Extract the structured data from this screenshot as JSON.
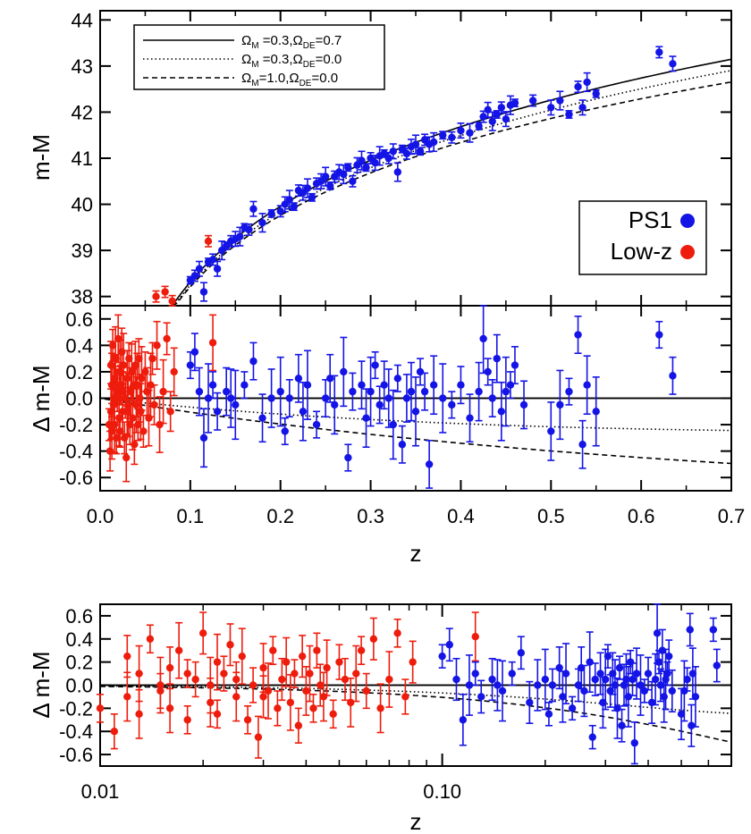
{
  "colors": {
    "ps1": "#1414e6",
    "lowz": "#ee1c0c",
    "axis": "#000000"
  },
  "chart_data": [
    {
      "type": "scatter",
      "panel": "top",
      "ylabel": "m-M",
      "xlim": [
        0,
        0.7
      ],
      "ylim": [
        37.8,
        44.2
      ],
      "yticks": [
        "38",
        "39",
        "40",
        "41",
        "42",
        "43",
        "44"
      ],
      "legend_lines": [
        {
          "omega_m": "0.3",
          "omega_de": "0.7",
          "style": "solid"
        },
        {
          "omega_m": "0.3",
          "omega_de": "0.0",
          "style": "dotted"
        },
        {
          "omega_m": "1.0",
          "omega_de": "0.0",
          "style": "dashed"
        }
      ],
      "legend_lines_placement": "top-left",
      "legend_points": [
        {
          "label": "PS1",
          "color": "#1414e6"
        },
        {
          "label": "Low-z",
          "color": "#ee1c0c"
        }
      ],
      "legend_points_placement": "right",
      "series_lowz": [
        [
          0.062,
          38.0
        ],
        [
          0.072,
          38.1
        ],
        [
          0.12,
          39.2
        ],
        [
          0.08,
          37.9
        ]
      ],
      "series_ps1": [
        [
          0.1,
          38.35
        ],
        [
          0.105,
          38.45
        ],
        [
          0.11,
          38.6
        ],
        [
          0.115,
          38.1
        ],
        [
          0.12,
          38.75
        ],
        [
          0.125,
          38.8
        ],
        [
          0.13,
          38.6
        ],
        [
          0.135,
          39.0
        ],
        [
          0.14,
          39.1
        ],
        [
          0.145,
          39.2
        ],
        [
          0.15,
          39.25
        ],
        [
          0.155,
          39.3
        ],
        [
          0.16,
          39.5
        ],
        [
          0.165,
          39.45
        ],
        [
          0.17,
          39.9
        ],
        [
          0.18,
          39.6
        ],
        [
          0.19,
          39.8
        ],
        [
          0.2,
          39.85
        ],
        [
          0.205,
          40.0
        ],
        [
          0.21,
          40.1
        ],
        [
          0.215,
          39.95
        ],
        [
          0.22,
          40.3
        ],
        [
          0.225,
          40.25
        ],
        [
          0.23,
          40.35
        ],
        [
          0.235,
          40.15
        ],
        [
          0.24,
          40.45
        ],
        [
          0.245,
          40.5
        ],
        [
          0.25,
          40.6
        ],
        [
          0.255,
          40.4
        ],
        [
          0.26,
          40.6
        ],
        [
          0.265,
          40.7
        ],
        [
          0.27,
          40.65
        ],
        [
          0.275,
          40.8
        ],
        [
          0.28,
          40.5
        ],
        [
          0.285,
          40.85
        ],
        [
          0.29,
          40.95
        ],
        [
          0.295,
          40.8
        ],
        [
          0.3,
          41.0
        ],
        [
          0.305,
          40.9
        ],
        [
          0.31,
          41.05
        ],
        [
          0.315,
          41.1
        ],
        [
          0.32,
          41.0
        ],
        [
          0.325,
          41.15
        ],
        [
          0.33,
          40.7
        ],
        [
          0.335,
          41.2
        ],
        [
          0.34,
          41.1
        ],
        [
          0.345,
          41.25
        ],
        [
          0.35,
          41.3
        ],
        [
          0.355,
          41.15
        ],
        [
          0.36,
          41.4
        ],
        [
          0.365,
          41.3
        ],
        [
          0.37,
          41.35
        ],
        [
          0.38,
          41.5
        ],
        [
          0.39,
          41.45
        ],
        [
          0.4,
          41.6
        ],
        [
          0.41,
          41.55
        ],
        [
          0.42,
          41.7
        ],
        [
          0.425,
          41.9
        ],
        [
          0.43,
          42.05
        ],
        [
          0.435,
          41.8
        ],
        [
          0.44,
          41.95
        ],
        [
          0.445,
          42.1
        ],
        [
          0.45,
          41.85
        ],
        [
          0.455,
          42.15
        ],
        [
          0.46,
          42.2
        ],
        [
          0.48,
          42.25
        ],
        [
          0.5,
          42.1
        ],
        [
          0.51,
          42.25
        ],
        [
          0.52,
          41.95
        ],
        [
          0.53,
          42.55
        ],
        [
          0.535,
          42.1
        ],
        [
          0.54,
          42.65
        ],
        [
          0.55,
          42.4
        ],
        [
          0.62,
          43.3
        ],
        [
          0.635,
          43.05
        ]
      ]
    },
    {
      "type": "scatter",
      "panel": "middle",
      "ylabel": "Δ m-M",
      "xlabel": "z",
      "xlim": [
        0,
        0.7
      ],
      "ylim": [
        -0.7,
        0.7
      ],
      "xticks": [
        "0.0",
        "0.1",
        "0.2",
        "0.3",
        "0.4",
        "0.5",
        "0.6",
        "0.7"
      ],
      "yticks": [
        "-0.6",
        "-0.4",
        "-0.2",
        "0.0",
        "0.2",
        "0.4",
        "0.6"
      ]
    },
    {
      "type": "scatter",
      "panel": "bottom",
      "ylabel": "Δ m-M",
      "xlabel": "z",
      "xscale": "log",
      "xlim": [
        0.01,
        0.7
      ],
      "ylim": [
        -0.7,
        0.7
      ],
      "xticks": [
        "0.01",
        "0.10"
      ],
      "yticks": [
        "-0.6",
        "-0.4",
        "-0.2",
        "0.0",
        "0.2",
        "0.4",
        "0.6"
      ]
    }
  ],
  "residuals_lowz": [
    [
      0.01,
      -0.2
    ],
    [
      0.011,
      -0.4
    ],
    [
      0.012,
      0.25
    ],
    [
      0.012,
      -0.1
    ],
    [
      0.013,
      0.1
    ],
    [
      0.014,
      0.4
    ],
    [
      0.015,
      -0.05
    ],
    [
      0.016,
      0.15
    ],
    [
      0.016,
      -0.2
    ],
    [
      0.017,
      0.3
    ],
    [
      0.018,
      -0.3
    ],
    [
      0.019,
      0.05
    ],
    [
      0.02,
      0.45
    ],
    [
      0.021,
      -0.15
    ],
    [
      0.022,
      0.2
    ],
    [
      0.022,
      -0.25
    ],
    [
      0.023,
      0.1
    ],
    [
      0.024,
      0.35
    ],
    [
      0.025,
      -0.1
    ],
    [
      0.026,
      0.25
    ],
    [
      0.027,
      -0.3
    ],
    [
      0.028,
      0.0
    ],
    [
      0.029,
      -0.45
    ],
    [
      0.03,
      0.15
    ],
    [
      0.031,
      -0.05
    ],
    [
      0.032,
      0.3
    ],
    [
      0.033,
      -0.2
    ],
    [
      0.034,
      0.05
    ],
    [
      0.035,
      0.2
    ],
    [
      0.036,
      -0.15
    ],
    [
      0.037,
      0.1
    ],
    [
      0.038,
      -0.35
    ],
    [
      0.039,
      0.25
    ],
    [
      0.04,
      -0.05
    ],
    [
      0.041,
      0.1
    ],
    [
      0.042,
      -0.2
    ],
    [
      0.043,
      0.3
    ],
    [
      0.044,
      0.0
    ],
    [
      0.045,
      -0.1
    ],
    [
      0.046,
      0.15
    ],
    [
      0.048,
      -0.25
    ],
    [
      0.05,
      0.2
    ],
    [
      0.052,
      0.05
    ],
    [
      0.054,
      -0.15
    ],
    [
      0.056,
      0.1
    ],
    [
      0.058,
      0.3
    ],
    [
      0.06,
      -0.05
    ],
    [
      0.063,
      0.4
    ],
    [
      0.066,
      -0.2
    ],
    [
      0.07,
      0.05
    ],
    [
      0.074,
      0.45
    ],
    [
      0.078,
      -0.1
    ],
    [
      0.082,
      0.2
    ],
    [
      0.125,
      0.42
    ],
    [
      0.015,
      0.0
    ],
    [
      0.018,
      0.1
    ],
    [
      0.025,
      0.05
    ],
    [
      0.03,
      -0.1
    ],
    [
      0.013,
      -0.25
    ],
    [
      0.021,
      0.0
    ]
  ],
  "residuals_ps1": [
    [
      0.1,
      0.25
    ],
    [
      0.105,
      0.35
    ],
    [
      0.11,
      0.05
    ],
    [
      0.115,
      -0.3
    ],
    [
      0.12,
      0.0
    ],
    [
      0.125,
      0.1
    ],
    [
      0.13,
      -0.1
    ],
    [
      0.14,
      0.05
    ],
    [
      0.145,
      0.0
    ],
    [
      0.15,
      -0.05
    ],
    [
      0.16,
      0.1
    ],
    [
      0.17,
      0.28
    ],
    [
      0.18,
      -0.15
    ],
    [
      0.19,
      0.0
    ],
    [
      0.2,
      0.05
    ],
    [
      0.205,
      -0.25
    ],
    [
      0.21,
      0.0
    ],
    [
      0.22,
      0.15
    ],
    [
      0.225,
      -0.1
    ],
    [
      0.23,
      0.1
    ],
    [
      0.24,
      -0.2
    ],
    [
      0.25,
      0.0
    ],
    [
      0.255,
      0.15
    ],
    [
      0.26,
      -0.05
    ],
    [
      0.27,
      0.2
    ],
    [
      0.275,
      -0.45
    ],
    [
      0.28,
      0.05
    ],
    [
      0.29,
      0.1
    ],
    [
      0.295,
      -0.15
    ],
    [
      0.3,
      0.05
    ],
    [
      0.305,
      0.25
    ],
    [
      0.31,
      -0.05
    ],
    [
      0.315,
      0.1
    ],
    [
      0.32,
      0.0
    ],
    [
      0.325,
      -0.2
    ],
    [
      0.33,
      0.15
    ],
    [
      0.335,
      -0.35
    ],
    [
      0.34,
      0.0
    ],
    [
      0.345,
      0.05
    ],
    [
      0.35,
      -0.1
    ],
    [
      0.355,
      0.2
    ],
    [
      0.36,
      0.05
    ],
    [
      0.365,
      -0.5
    ],
    [
      0.37,
      0.1
    ],
    [
      0.38,
      0.0
    ],
    [
      0.39,
      -0.05
    ],
    [
      0.4,
      0.1
    ],
    [
      0.41,
      -0.15
    ],
    [
      0.42,
      0.05
    ],
    [
      0.425,
      0.45
    ],
    [
      0.43,
      0.2
    ],
    [
      0.435,
      0.0
    ],
    [
      0.44,
      0.3
    ],
    [
      0.445,
      -0.1
    ],
    [
      0.45,
      0.05
    ],
    [
      0.455,
      0.1
    ],
    [
      0.46,
      0.25
    ],
    [
      0.47,
      -0.05
    ],
    [
      0.5,
      -0.25
    ],
    [
      0.51,
      -0.05
    ],
    [
      0.52,
      0.05
    ],
    [
      0.53,
      0.48
    ],
    [
      0.535,
      -0.35
    ],
    [
      0.54,
      0.1
    ],
    [
      0.55,
      -0.1
    ],
    [
      0.62,
      0.48
    ],
    [
      0.635,
      0.17
    ]
  ]
}
